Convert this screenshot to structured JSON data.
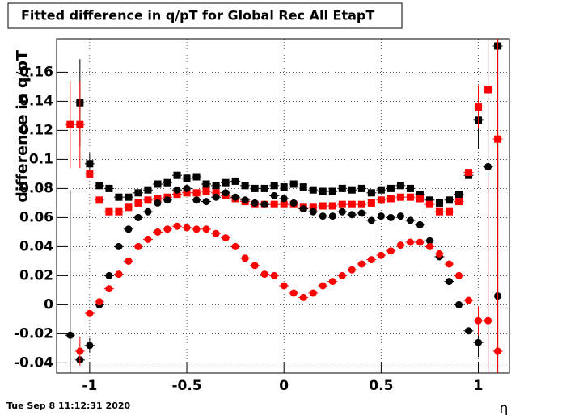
{
  "chart_data": {
    "type": "scatter",
    "title": "Fitted difference in q/pT for Global Rec All EtapT",
    "y_label": "difference in q/pT",
    "x_label": "η",
    "timestamp": "Tue Sep  8 11:12:31 2020",
    "xlim": [
      -1.17,
      1.16
    ],
    "ylim": [
      -0.047,
      0.183
    ],
    "xticks": [
      -1,
      -0.5,
      0,
      0.5,
      1
    ],
    "yticks": [
      -0.04,
      -0.02,
      0,
      0.02,
      0.04,
      0.06,
      0.08,
      0.1,
      0.12,
      0.14,
      0.16
    ],
    "grid": true,
    "x": [
      -1.1,
      -1.05,
      -1.0,
      -0.95,
      -0.9,
      -0.85,
      -0.8,
      -0.75,
      -0.7,
      -0.65,
      -0.6,
      -0.55,
      -0.5,
      -0.45,
      -0.4,
      -0.35,
      -0.3,
      -0.25,
      -0.2,
      -0.15,
      -0.1,
      -0.05,
      0,
      0.05,
      0.1,
      0.15,
      0.2,
      0.25,
      0.3,
      0.35,
      0.4,
      0.45,
      0.5,
      0.55,
      0.6,
      0.65,
      0.7,
      0.75,
      0.8,
      0.85,
      0.9,
      0.95,
      1.0,
      1.05,
      1.1
    ],
    "series": [
      {
        "color": "#000000",
        "marker": "square",
        "values": [
          null,
          0.139,
          0.097,
          0.082,
          0.08,
          0.074,
          0.074,
          0.077,
          0.079,
          0.083,
          0.084,
          0.089,
          0.087,
          0.088,
          0.083,
          0.082,
          0.084,
          0.085,
          0.082,
          0.08,
          0.08,
          0.082,
          0.081,
          0.083,
          0.081,
          0.079,
          0.078,
          0.078,
          0.08,
          0.079,
          0.08,
          0.077,
          0.079,
          0.08,
          0.082,
          0.08,
          0.076,
          0.072,
          0.07,
          0.072,
          0.076,
          0.089,
          0.127,
          null,
          0.178
        ],
        "errors": [
          null,
          0.03,
          0.007,
          null,
          null,
          null,
          null,
          null,
          null,
          null,
          null,
          null,
          null,
          null,
          null,
          null,
          null,
          null,
          null,
          null,
          null,
          null,
          null,
          null,
          null,
          null,
          null,
          null,
          null,
          null,
          null,
          null,
          null,
          null,
          null,
          null,
          null,
          null,
          null,
          null,
          null,
          null,
          0.02,
          null,
          0.1
        ]
      },
      {
        "color": "#ff0000",
        "marker": "square",
        "values": [
          0.124,
          0.124,
          0.09,
          0.072,
          0.064,
          0.064,
          0.067,
          0.07,
          0.072,
          0.073,
          0.074,
          0.076,
          0.077,
          0.077,
          0.078,
          0.077,
          0.075,
          0.073,
          0.071,
          0.069,
          0.069,
          0.069,
          0.069,
          0.069,
          0.067,
          0.067,
          0.068,
          0.068,
          0.069,
          0.069,
          0.069,
          0.07,
          0.072,
          0.073,
          0.074,
          0.074,
          0.073,
          0.069,
          0.064,
          0.064,
          0.071,
          0.091,
          0.136,
          0.148,
          0.114
        ],
        "errors": [
          0.03,
          0.03,
          null,
          null,
          null,
          null,
          null,
          null,
          null,
          null,
          null,
          null,
          null,
          null,
          null,
          null,
          null,
          null,
          null,
          null,
          null,
          null,
          null,
          null,
          null,
          null,
          null,
          null,
          null,
          null,
          null,
          null,
          null,
          null,
          null,
          null,
          null,
          null,
          null,
          null,
          null,
          null,
          0.015,
          0.2,
          0.15
        ]
      },
      {
        "color": "#000000",
        "marker": "circle",
        "values": [
          -0.021,
          -0.038,
          -0.028,
          0.0,
          0.02,
          0.04,
          0.052,
          0.06,
          0.064,
          0.07,
          0.072,
          0.079,
          0.08,
          0.072,
          0.071,
          0.074,
          0.077,
          0.074,
          0.072,
          0.07,
          0.069,
          0.075,
          0.073,
          0.07,
          0.066,
          0.064,
          0.061,
          0.061,
          0.064,
          0.062,
          0.063,
          0.058,
          0.061,
          0.06,
          0.061,
          0.058,
          0.055,
          0.044,
          0.033,
          0.016,
          0.0,
          -0.018,
          -0.026,
          0.095,
          0.006
        ],
        "errors": [
          0.1,
          null,
          0.005,
          null,
          null,
          null,
          null,
          null,
          null,
          null,
          null,
          null,
          null,
          null,
          null,
          null,
          null,
          null,
          null,
          null,
          null,
          null,
          null,
          null,
          null,
          null,
          null,
          null,
          null,
          null,
          null,
          null,
          null,
          null,
          null,
          null,
          null,
          null,
          null,
          null,
          null,
          null,
          0.01,
          0.15,
          0.1
        ]
      },
      {
        "color": "#ff0000",
        "marker": "circle",
        "values": [
          null,
          -0.032,
          -0.006,
          0.002,
          0.011,
          0.021,
          0.03,
          0.04,
          0.045,
          0.05,
          0.052,
          0.054,
          0.053,
          0.052,
          0.052,
          0.049,
          0.046,
          0.04,
          0.032,
          0.027,
          0.021,
          0.02,
          0.013,
          0.008,
          0.005,
          0.008,
          0.013,
          0.016,
          0.02,
          0.024,
          0.028,
          0.031,
          0.034,
          0.037,
          0.041,
          0.043,
          0.043,
          0.04,
          0.035,
          0.028,
          0.02,
          0.003,
          -0.011,
          -0.011,
          -0.032
        ],
        "errors": [
          null,
          0.01,
          null,
          null,
          null,
          null,
          null,
          null,
          null,
          null,
          null,
          null,
          null,
          null,
          null,
          null,
          null,
          null,
          null,
          null,
          null,
          null,
          null,
          null,
          null,
          null,
          null,
          null,
          null,
          null,
          null,
          null,
          null,
          null,
          null,
          null,
          null,
          null,
          null,
          null,
          null,
          null,
          0.01,
          0.1,
          0.15
        ]
      }
    ]
  }
}
